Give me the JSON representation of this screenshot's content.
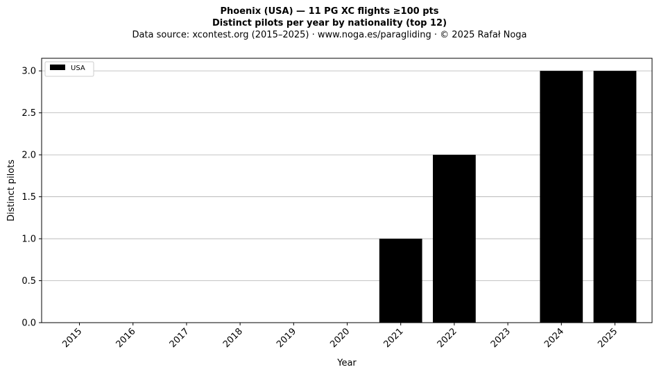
{
  "header": {
    "title": "Phoenix (USA)  —  11 PG XC flights ≥100 pts",
    "subtitle": "Distinct pilots per year by nationality (top 12)",
    "source": "Data source: xcontest.org (2015–2025)  ·  www.noga.es/paragliding  ·  © 2025 Rafał Noga"
  },
  "chart_data": {
    "type": "bar",
    "categories": [
      "2015",
      "2016",
      "2017",
      "2018",
      "2019",
      "2020",
      "2021",
      "2022",
      "2023",
      "2024",
      "2025"
    ],
    "series": [
      {
        "name": "USA",
        "values": [
          0,
          0,
          0,
          0,
          0,
          0,
          1,
          2,
          0,
          3,
          3
        ],
        "color": "#000000"
      }
    ],
    "xlabel": "Year",
    "ylabel": "Distinct pilots",
    "ylim": [
      0,
      3.15
    ],
    "yticks": [
      "0.0",
      "0.5",
      "1.0",
      "1.5",
      "2.0",
      "2.5",
      "3.0"
    ],
    "grid": "horizontal",
    "legend_position": "top-left"
  }
}
